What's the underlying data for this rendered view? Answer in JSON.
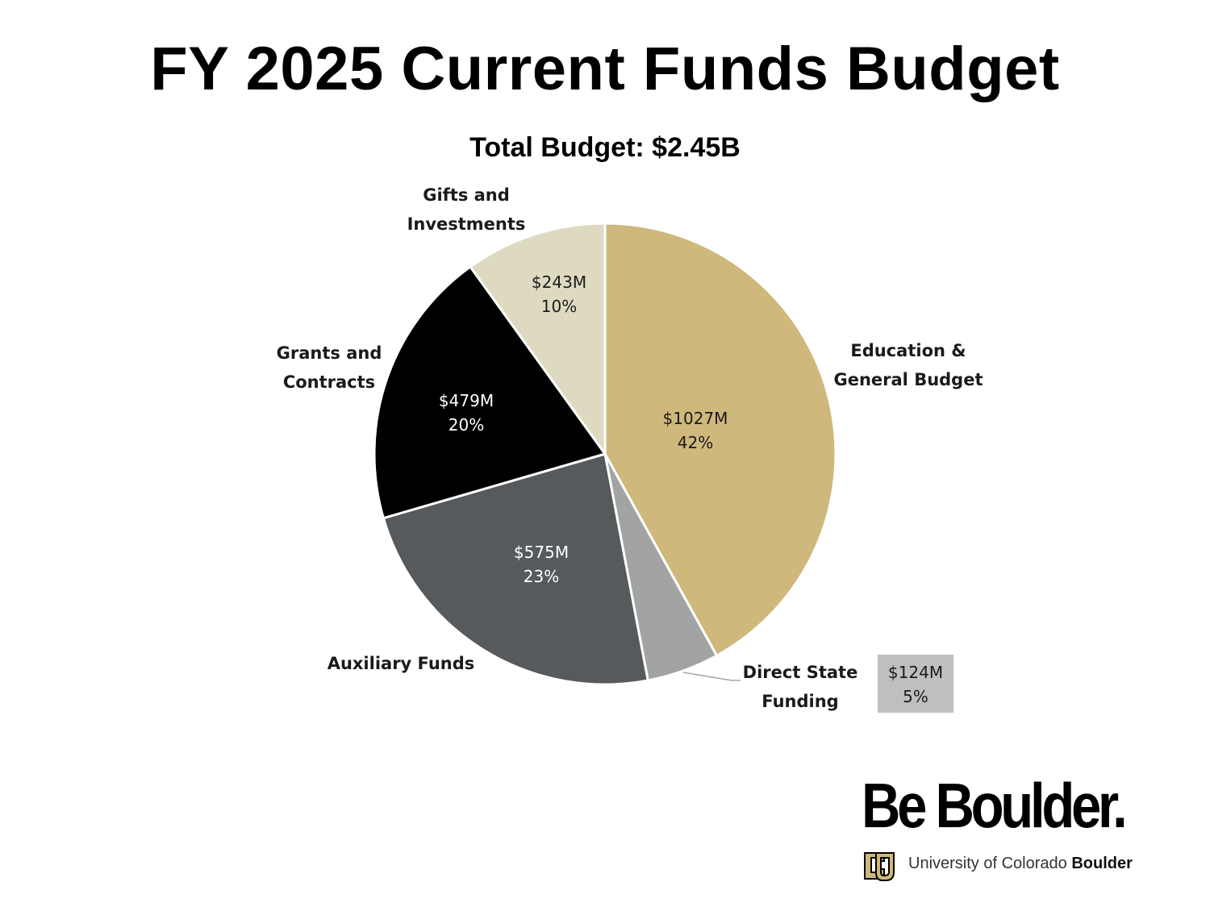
{
  "slide": {
    "title": "FY 2025 Current Funds Budget"
  },
  "chart_data": {
    "type": "pie",
    "title": "FY 2025 Current Funds Budget",
    "subtitle": "Total Budget:  $2.45B",
    "unit": "$M",
    "start_angle_deg": 0,
    "direction": "clockwise",
    "slices": [
      {
        "label_lines": [
          "Education &",
          "General Budget"
        ],
        "value": 1027,
        "value_label": "$1027M",
        "percent_label": "42%",
        "color": "#CFB87C",
        "data_label_color": "#1a1a1a"
      },
      {
        "label_lines": [
          "Direct State",
          "Funding"
        ],
        "value": 124,
        "value_label": "$124M",
        "percent_label": "5%",
        "color": "#A2A4A3",
        "data_label_color": "#1a1a1a"
      },
      {
        "label_lines": [
          "Auxiliary Funds"
        ],
        "value": 575,
        "value_label": "$575M",
        "percent_label": "23%",
        "color": "#565A5C",
        "data_label_color": "#ffffff"
      },
      {
        "label_lines": [
          "Grants and",
          "Contracts"
        ],
        "value": 479,
        "value_label": "$479M",
        "percent_label": "20%",
        "color": "#000000",
        "data_label_color": "#ffffff"
      },
      {
        "label_lines": [
          "Gifts and",
          "Investments"
        ],
        "value": 243,
        "value_label": "$243M",
        "percent_label": "10%",
        "color": "#DEDAC2",
        "data_label_color": "#1a1a1a"
      }
    ],
    "legend": "none"
  },
  "logo": {
    "wordmark": "Be Boulder.",
    "university_prefix": "University of Colorado ",
    "university_bold": "Boulder",
    "mark_color": "#CFB87C"
  }
}
